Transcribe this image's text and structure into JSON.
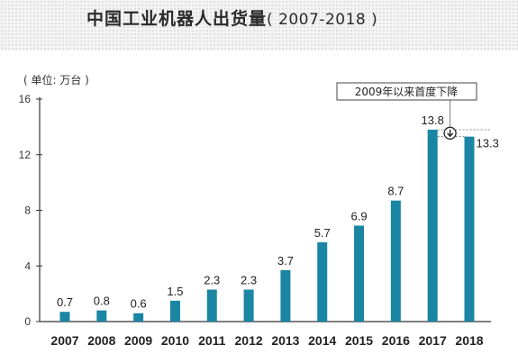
{
  "header": {
    "title": "中国工业机器人出货量",
    "subtitle": "( 2007-2018 )"
  },
  "chart_data": {
    "type": "bar",
    "title": "中国工业机器人出货量 ( 2007-2018 )",
    "unit_label": "( 单位: 万台 )",
    "xlabel": "",
    "ylabel": "",
    "categories": [
      "2007",
      "2008",
      "2009",
      "2010",
      "2011",
      "2012",
      "2013",
      "2014",
      "2015",
      "2016",
      "2017",
      "2018"
    ],
    "values": [
      0.7,
      0.8,
      0.6,
      1.5,
      2.3,
      2.3,
      3.7,
      5.7,
      6.9,
      8.7,
      13.8,
      13.3
    ],
    "data_labels": [
      "0.7",
      "0.8",
      "0.6",
      "1.5",
      "2.3",
      "2.3",
      "3.7",
      "5.7",
      "6.9",
      "8.7",
      "13.8",
      "13.3"
    ],
    "yticks": [
      "0",
      "4",
      "8",
      "12",
      "16"
    ],
    "ylim": [
      0,
      16
    ],
    "bar_color": "#1a86a3",
    "grid": false,
    "annotation": {
      "text": "2009年以来首度下降",
      "target_category": "2018",
      "icon": "down-arrow-circle-icon"
    }
  }
}
